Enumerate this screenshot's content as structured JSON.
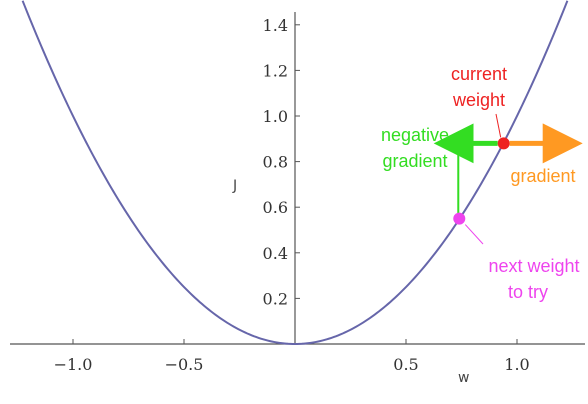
{
  "chart_data": {
    "type": "line",
    "function": "J = w^2",
    "xlabel": "w",
    "ylabel": "J",
    "xlim": [
      -1.25,
      1.25
    ],
    "ylim": [
      0,
      1.5
    ],
    "x_ticks": [
      -1.0,
      -0.5,
      0.5,
      1.0
    ],
    "x_tick_labels": [
      "−1.0",
      "−0.5",
      "0.5",
      "1.0"
    ],
    "y_ticks": [
      0.2,
      0.4,
      0.6,
      0.8,
      1.0,
      1.2,
      1.4
    ],
    "y_tick_labels": [
      "0.2",
      "0.4",
      "0.6",
      "0.8",
      "1.0",
      "1.2",
      "1.4"
    ],
    "grid": false,
    "series": [
      {
        "x": [
          -1.2,
          -1.0,
          -0.8,
          -0.6,
          -0.4,
          -0.2,
          0.0,
          0.2,
          0.4,
          0.6,
          0.8,
          1.0,
          1.2
        ],
        "y": [
          1.44,
          1.0,
          0.64,
          0.36,
          0.16,
          0.04,
          0.0,
          0.04,
          0.16,
          0.36,
          0.64,
          1.0,
          1.44
        ],
        "color": "#6666aa"
      }
    ],
    "points": {
      "current_weight": {
        "x": 0.94,
        "y": 0.88,
        "color": "#ee2222"
      },
      "next_weight": {
        "x": 0.74,
        "y": 0.55,
        "color": "#ee44ee"
      }
    },
    "annotations": {
      "current_weight_line1": "current",
      "current_weight_line2": "weight",
      "negative_gradient_line1": "negative",
      "negative_gradient_line2": "gradient",
      "gradient": "gradient",
      "next_weight_line1": "next weight",
      "next_weight_line2": "to try"
    },
    "colors": {
      "curve": "#6666aa",
      "current_weight": "#ee2222",
      "negative_gradient": "#33dd22",
      "gradient": "#ff9922",
      "next_weight": "#ee44ee"
    }
  }
}
